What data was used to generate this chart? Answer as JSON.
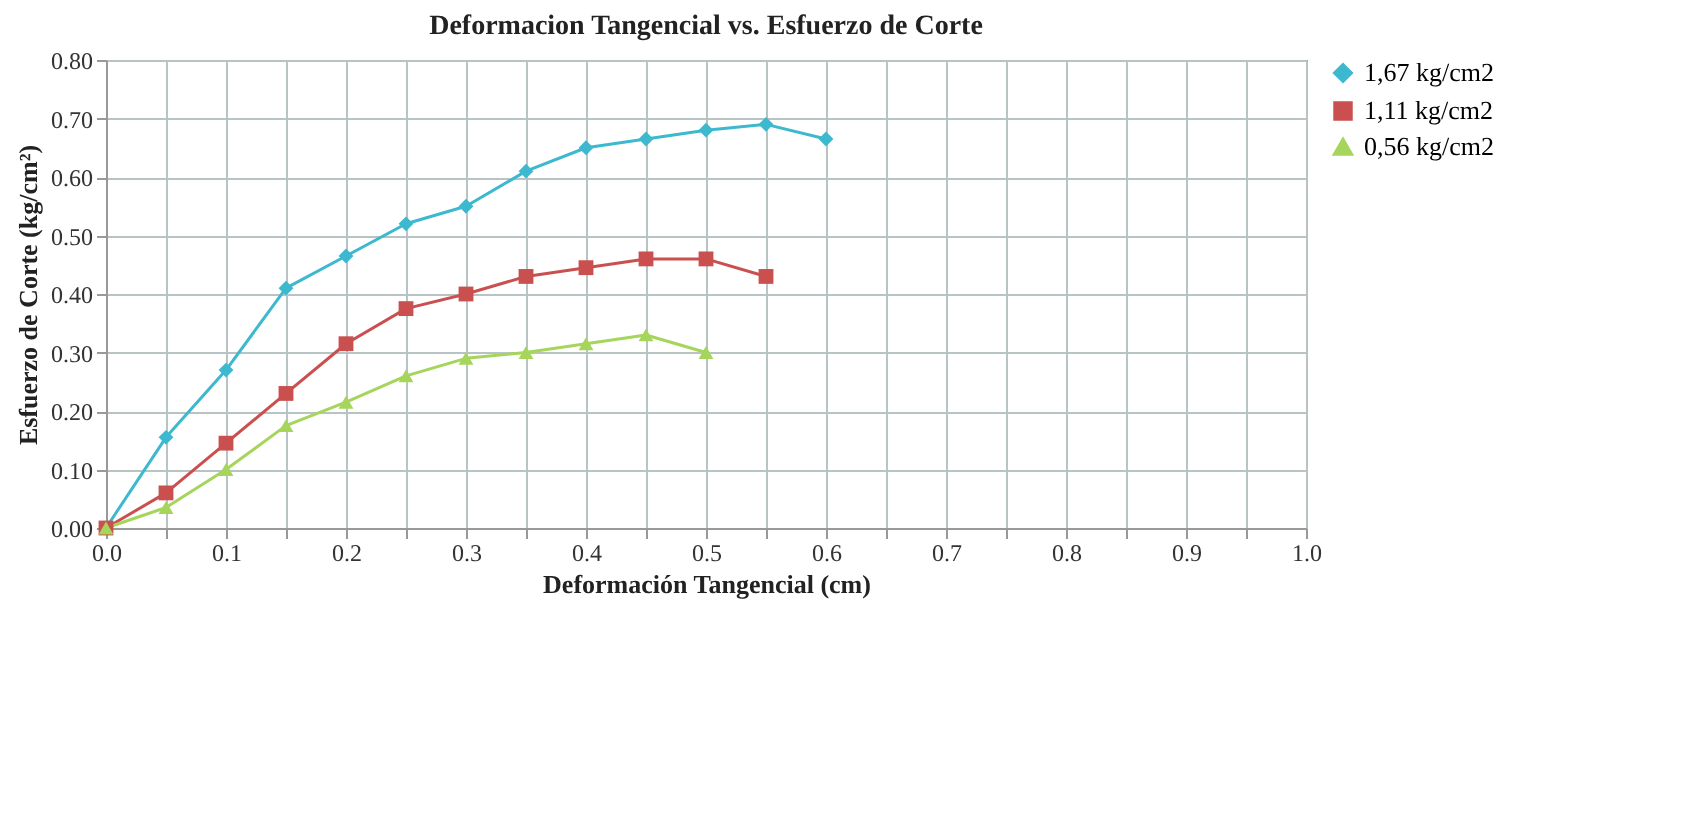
{
  "chart_data": {
    "type": "line",
    "title": "Deformacion Tangencial vs. Esfuerzo de Corte",
    "xlabel": "Deformación Tangencial (cm)",
    "ylabel": "Esfuerzo de Corte (kg/cm²)",
    "xlim": [
      0,
      1
    ],
    "ylim": [
      0,
      0.8
    ],
    "xticks": [
      {
        "value": 0,
        "label": "0.0"
      },
      {
        "value": 0.05,
        "label": null
      },
      {
        "value": 0.1,
        "label": "0.1"
      },
      {
        "value": 0.15,
        "label": null
      },
      {
        "value": 0.2,
        "label": "0.2"
      },
      {
        "value": 0.25,
        "label": null
      },
      {
        "value": 0.3,
        "label": "0.3"
      },
      {
        "value": 0.35,
        "label": null
      },
      {
        "value": 0.4,
        "label": "0.4"
      },
      {
        "value": 0.45,
        "label": null
      },
      {
        "value": 0.5,
        "label": "0.5"
      },
      {
        "value": 0.55,
        "label": null
      },
      {
        "value": 0.6,
        "label": "0.6"
      },
      {
        "value": 0.65,
        "label": null
      },
      {
        "value": 0.7,
        "label": "0.7"
      },
      {
        "value": 0.75,
        "label": null
      },
      {
        "value": 0.8,
        "label": "0.8"
      },
      {
        "value": 0.85,
        "label": null
      },
      {
        "value": 0.9,
        "label": "0.9"
      },
      {
        "value": 0.95,
        "label": null
      },
      {
        "value": 1,
        "label": "1.0"
      }
    ],
    "yticks": [
      {
        "value": 0,
        "label": "0.00"
      },
      {
        "value": 0.1,
        "label": "0.10"
      },
      {
        "value": 0.2,
        "label": "0.20"
      },
      {
        "value": 0.3,
        "label": "0.30"
      },
      {
        "value": 0.4,
        "label": "0.40"
      },
      {
        "value": 0.5,
        "label": "0.50"
      },
      {
        "value": 0.6,
        "label": "0.60"
      },
      {
        "value": 0.7,
        "label": "0.70"
      },
      {
        "value": 0.8,
        "label": "0.80"
      }
    ],
    "grid": true,
    "legend": "right",
    "line_style": "solid",
    "series": [
      {
        "name": "1,67 kg/cm2",
        "color": "#3cb8cf",
        "marker": "diamond",
        "x": [
          0,
          0.05,
          0.1,
          0.15,
          0.2,
          0.25,
          0.3,
          0.35,
          0.4,
          0.45,
          0.5,
          0.55,
          0.6
        ],
        "values": [
          0,
          0.155,
          0.27,
          0.41,
          0.465,
          0.52,
          0.55,
          0.61,
          0.65,
          0.665,
          0.68,
          0.69,
          0.665
        ]
      },
      {
        "name": "1,11 kg/cm2",
        "color": "#c9504f",
        "marker": "square",
        "x": [
          0,
          0.05,
          0.1,
          0.15,
          0.2,
          0.25,
          0.3,
          0.35,
          0.4,
          0.45,
          0.5,
          0.55
        ],
        "values": [
          0,
          0.06,
          0.145,
          0.23,
          0.315,
          0.375,
          0.4,
          0.43,
          0.445,
          0.46,
          0.46,
          0.43
        ]
      },
      {
        "name": "0,56 kg/cm2",
        "color": "#a5d55a",
        "marker": "triangle",
        "x": [
          0,
          0.05,
          0.1,
          0.15,
          0.2,
          0.25,
          0.3,
          0.35,
          0.4,
          0.45,
          0.5
        ],
        "values": [
          0,
          0.035,
          0.1,
          0.175,
          0.215,
          0.26,
          0.29,
          0.3,
          0.315,
          0.33,
          0.3
        ]
      }
    ]
  }
}
